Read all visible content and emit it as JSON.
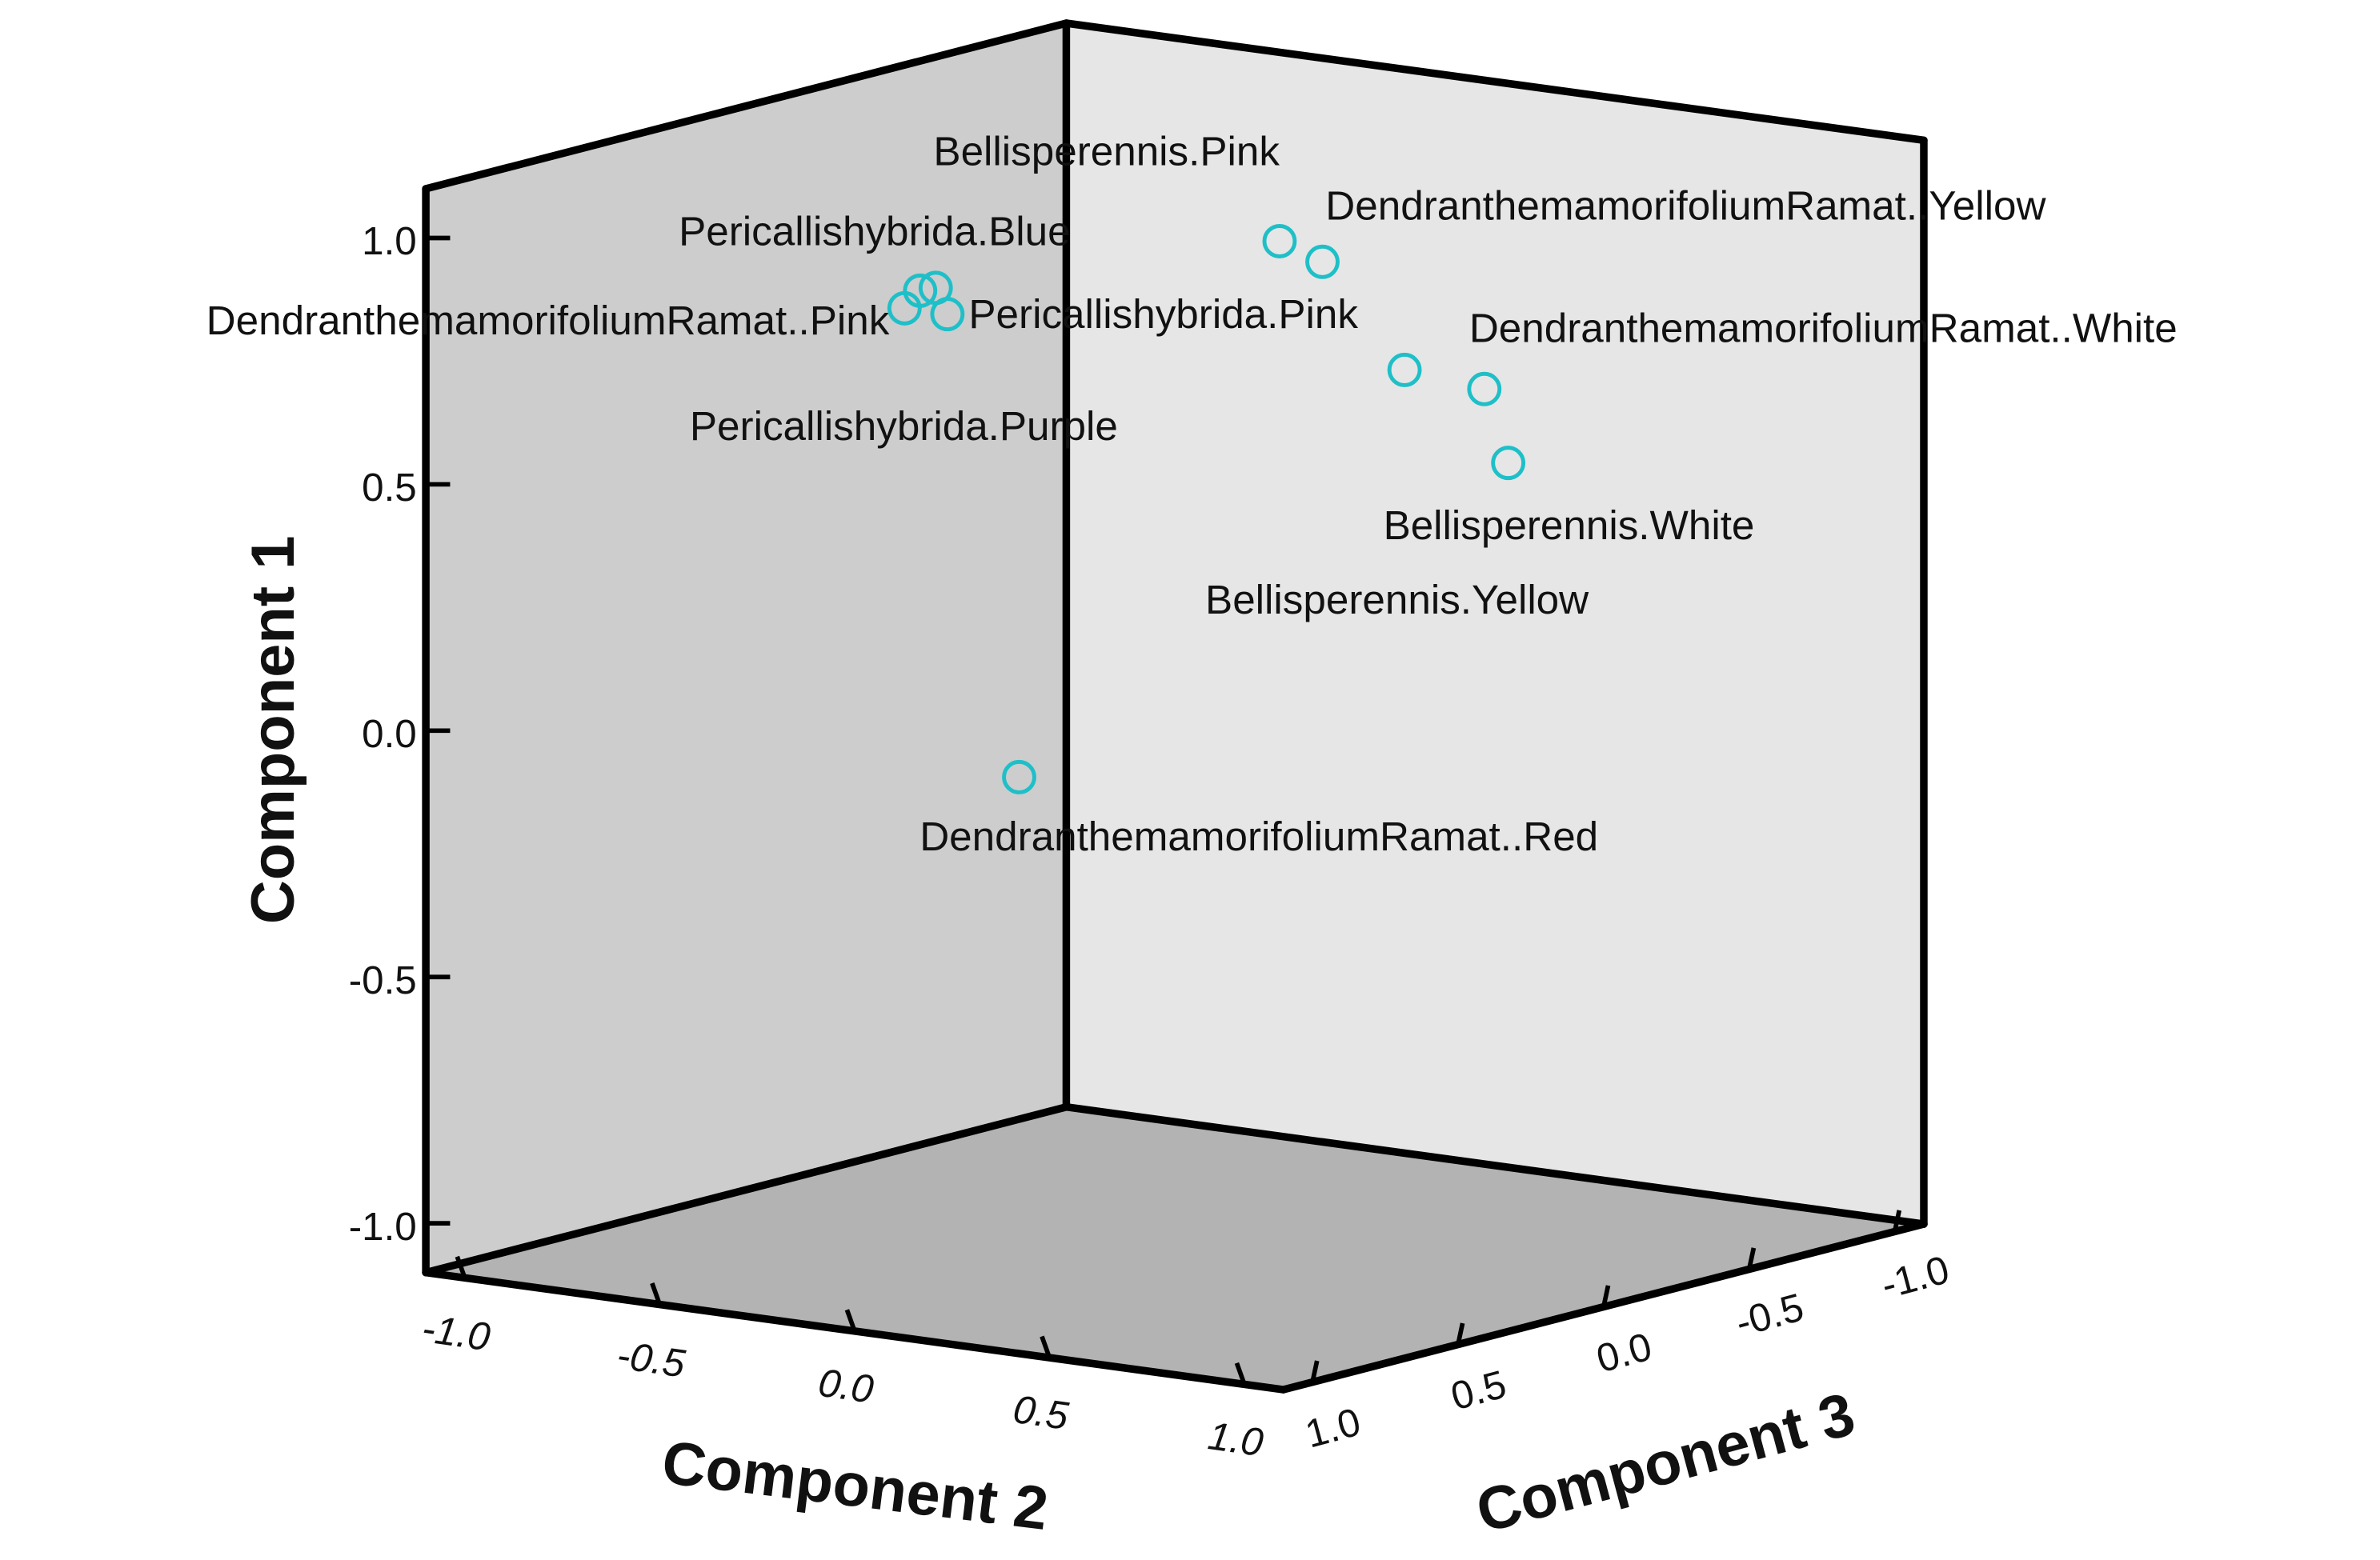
{
  "chart_data": {
    "type": "scatter3d",
    "xlabel": "Component 2",
    "ylabel": "Component 3",
    "zlabel": "Component 1",
    "xlim": [
      -1.1,
      1.1
    ],
    "ylim": [
      -1.1,
      1.1
    ],
    "zlim": [
      -1.1,
      1.1
    ],
    "xticks": [
      {
        "value": -1,
        "label": "-1.0"
      },
      -0.5,
      {
        "value": 0,
        "label": "0.0"
      },
      0.5,
      {
        "value": 1,
        "label": "1.0"
      }
    ],
    "yticks": [
      {
        "value": -1,
        "label": "-1.0"
      },
      -0.5,
      {
        "value": 0,
        "label": "0.0"
      },
      0.5,
      {
        "value": 1,
        "label": "1.0"
      }
    ],
    "zticks": [
      {
        "value": -1,
        "label": "-1.0"
      },
      -0.5,
      {
        "value": 0,
        "label": "0.0"
      },
      0.5,
      {
        "value": 1,
        "label": "1.0"
      }
    ],
    "series": [
      {
        "color": "#1fbfc8",
        "labels": [
          "Pericallishybrida.Blue",
          "DendranthemamorifoliumRamat..Pink",
          "Pericallishybrida.Pink",
          "Pericallishybrida.Purple",
          "Bellisperennis.Pink",
          "DendranthemamorifoliumRamat..Yellow",
          "Bellisperennis.Yellow",
          "DendranthemamorifoliumRamat..White",
          "Bellisperennis.White",
          "DendranthemamorifoliumRamat..Red"
        ],
        "x": [
          -0.28,
          -0.32,
          -0.21,
          -0.24,
          -0.03,
          0.08,
          0.44,
          0.57,
          0.93,
          -0.25
        ],
        "y": [
          0.5,
          0.5,
          0.5,
          0.5,
          -0.4,
          -0.4,
          -0.2,
          -0.3,
          0.1,
          0.2
        ],
        "z": [
          0.89,
          0.85,
          0.85,
          0.9,
          0.88,
          0.85,
          0.7,
          0.66,
          0.61,
          -0.14
        ]
      }
    ]
  }
}
